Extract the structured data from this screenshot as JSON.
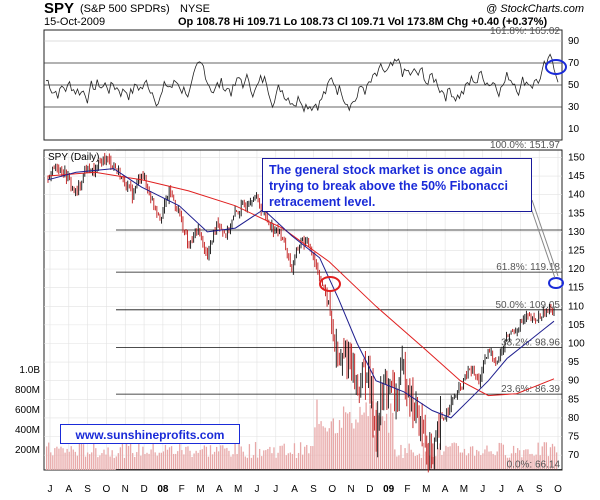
{
  "header": {
    "symbol": "SPY",
    "name": "(S&P 500 SPDRs)",
    "exchange": "NYSE",
    "source": "@ StockCharts.com",
    "date": "15-Oct-2009",
    "quote": "Op 108.78  Hi 109.71  Lo 108.73  Cl 109.71  Vol 173.8M  Chg +0.40 (+0.37%)"
  },
  "price_panel_label": "SPY (Daily)",
  "annotation": "The general stock market is once again trying to break above the 50% Fibonacci retracement level.",
  "watermark": "www.sunshineprofits.com",
  "colors": {
    "moving_average_short": "#1f1f8f",
    "moving_average_long": "#e02020",
    "volume": "#e8a8a8",
    "highlight_circles": "#1a2bd8",
    "red_circle": "#e02020"
  },
  "chart_data": [
    {
      "type": "line",
      "panel": "oscillator",
      "y_ticks": [
        10,
        30,
        50,
        70,
        90
      ],
      "ylim": [
        0,
        100
      ],
      "reference_lines": [
        30,
        50,
        70
      ],
      "fib_label": "161.8%: 165.02"
    },
    {
      "type": "candlestick",
      "panel": "price",
      "x_ticks": [
        "J",
        "A",
        "S",
        "O",
        "N",
        "D",
        "08",
        "F",
        "M",
        "A",
        "M",
        "J",
        "J",
        "A",
        "S",
        "O",
        "N",
        "D",
        "09",
        "F",
        "M",
        "A",
        "M",
        "J",
        "J",
        "A",
        "S",
        "O"
      ],
      "y_ticks": [
        70,
        75,
        80,
        85,
        90,
        95,
        100,
        105,
        110,
        115,
        120,
        125,
        130,
        135,
        140,
        145,
        150
      ],
      "ylim": [
        66,
        152
      ],
      "fibonacci_levels": [
        {
          "label": "100.0%: 151.97",
          "value": 151.97
        },
        {
          "label": "61.8%: 119.18",
          "value": 119.18
        },
        {
          "label": "50.0%: 109.05",
          "value": 109.05
        },
        {
          "label": "38.2%: 98.96",
          "value": 98.96
        },
        {
          "label": "23.6%: 86.39",
          "value": 86.39
        },
        {
          "label": "0.0%: 66.14",
          "value": 66.14
        }
      ],
      "extra_level": 130.5,
      "price_path": [
        [
          0,
          145
        ],
        [
          1,
          148
        ],
        [
          2,
          145
        ],
        [
          3,
          140
        ],
        [
          4,
          147
        ],
        [
          5,
          146
        ],
        [
          6,
          150
        ],
        [
          7,
          148
        ],
        [
          8,
          144
        ],
        [
          9,
          140
        ],
        [
          10,
          146
        ],
        [
          11,
          139
        ],
        [
          12,
          134
        ],
        [
          13,
          141
        ],
        [
          14,
          135
        ],
        [
          15,
          126
        ],
        [
          16,
          131
        ],
        [
          17,
          123
        ],
        [
          18,
          133
        ],
        [
          19,
          129
        ],
        [
          20,
          135
        ],
        [
          21,
          137
        ],
        [
          22,
          140
        ],
        [
          23,
          135
        ],
        [
          24,
          131
        ],
        [
          25,
          129
        ],
        [
          26,
          120
        ],
        [
          27,
          128
        ],
        [
          28,
          126
        ],
        [
          29,
          118
        ],
        [
          30,
          110
        ],
        [
          31,
          93
        ],
        [
          32,
          98
        ],
        [
          33,
          88
        ],
        [
          34,
          94
        ],
        [
          35,
          77
        ],
        [
          36,
          90
        ],
        [
          37,
          85
        ],
        [
          38,
          93
        ],
        [
          39,
          83
        ],
        [
          40,
          76
        ],
        [
          41,
          68
        ],
        [
          42,
          79
        ],
        [
          43,
          84
        ],
        [
          44,
          88
        ],
        [
          45,
          93
        ],
        [
          46,
          90
        ],
        [
          47,
          98
        ],
        [
          48,
          95
        ],
        [
          49,
          102
        ],
        [
          50,
          104
        ],
        [
          51,
          107
        ],
        [
          52,
          106
        ],
        [
          53,
          108.5
        ],
        [
          54,
          109.7
        ]
      ],
      "ma_short": [
        [
          0,
          144
        ],
        [
          3,
          146
        ],
        [
          7,
          147
        ],
        [
          10,
          142
        ],
        [
          14,
          137
        ],
        [
          17,
          130
        ],
        [
          20,
          131
        ],
        [
          23,
          136
        ],
        [
          26,
          129
        ],
        [
          29,
          123
        ],
        [
          31,
          112
        ],
        [
          33,
          100
        ],
        [
          35,
          90
        ],
        [
          38,
          87
        ],
        [
          41,
          82
        ],
        [
          43,
          80
        ],
        [
          45,
          85
        ],
        [
          47,
          90
        ],
        [
          49,
          96
        ],
        [
          51,
          100
        ],
        [
          53,
          104
        ],
        [
          54,
          106
        ]
      ],
      "ma_long": [
        [
          0,
          145
        ],
        [
          5,
          146
        ],
        [
          10,
          144
        ],
        [
          15,
          141
        ],
        [
          20,
          137
        ],
        [
          25,
          131
        ],
        [
          30,
          122
        ],
        [
          35,
          110
        ],
        [
          40,
          99
        ],
        [
          44,
          90
        ],
        [
          47,
          86
        ],
        [
          50,
          86.5
        ],
        [
          52,
          88.5
        ],
        [
          54,
          90.5
        ]
      ]
    },
    {
      "type": "bar",
      "panel": "volume",
      "y_ticks": [
        "1.0B",
        "800M",
        "600M",
        "400M",
        "200M"
      ],
      "ylim": [
        0,
        1100
      ]
    }
  ]
}
